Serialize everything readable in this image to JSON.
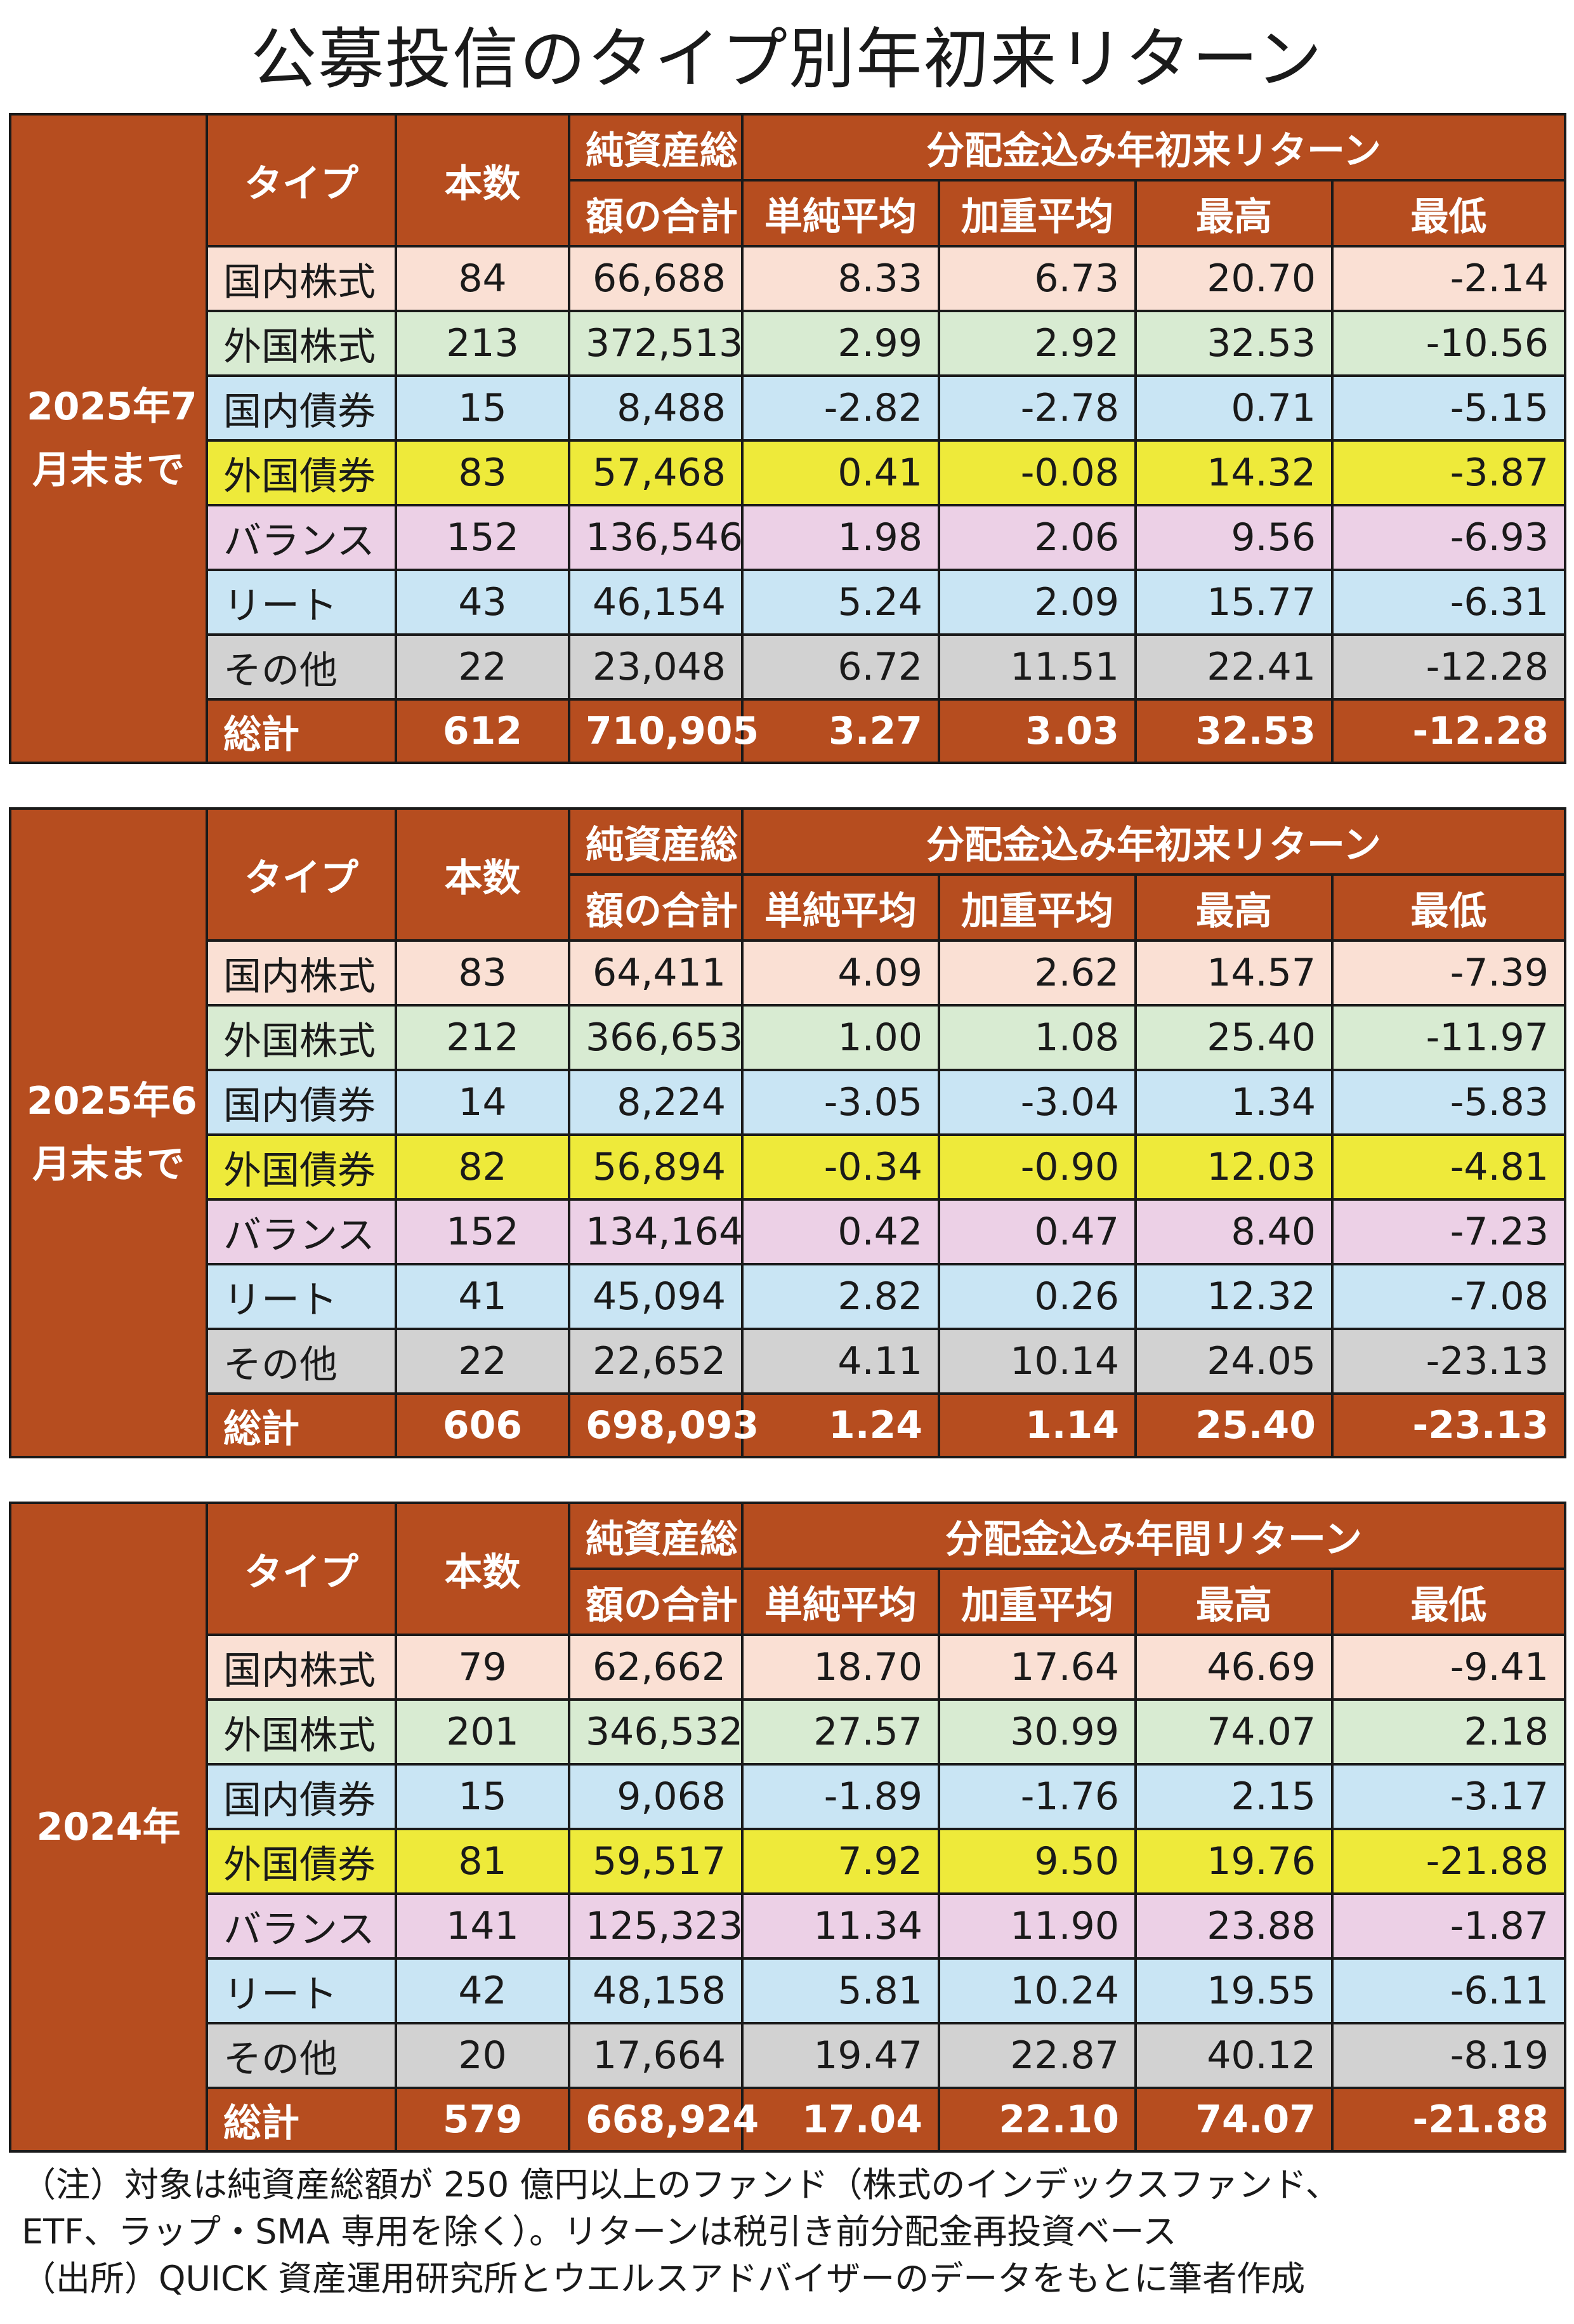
{
  "title": "公募投信のタイプ別年初来リターン",
  "colors": {
    "header_bg": "#b64d1f",
    "row_bg": [
      "#fae0d4",
      "#d8ebd2",
      "#c9e5f4",
      "#eeea3a",
      "#ecd0e6",
      "#c9e5f4",
      "#d2d2d2"
    ]
  },
  "headers": {
    "type": "タイプ",
    "count": "本数",
    "assets_line1": "純資産総",
    "assets_line2": "額の合計",
    "simple_avg": "単純平均",
    "weighted_avg": "加重平均",
    "max": "最高",
    "min": "最低"
  },
  "sections": [
    {
      "period": "2025年7月末まで",
      "return_header": "分配金込み年初来リターン",
      "rows": [
        {
          "type": "国内株式",
          "count": "84",
          "assets": "66,688",
          "simple": "8.33",
          "weighted": "6.73",
          "max": "20.70",
          "min": "-2.14"
        },
        {
          "type": "外国株式",
          "count": "213",
          "assets": "372,513",
          "simple": "2.99",
          "weighted": "2.92",
          "max": "32.53",
          "min": "-10.56"
        },
        {
          "type": "国内債券",
          "count": "15",
          "assets": "8,488",
          "simple": "-2.82",
          "weighted": "-2.78",
          "max": "0.71",
          "min": "-5.15"
        },
        {
          "type": "外国債券",
          "count": "83",
          "assets": "57,468",
          "simple": "0.41",
          "weighted": "-0.08",
          "max": "14.32",
          "min": "-3.87"
        },
        {
          "type": "バランス",
          "count": "152",
          "assets": "136,546",
          "simple": "1.98",
          "weighted": "2.06",
          "max": "9.56",
          "min": "-6.93"
        },
        {
          "type": "リート",
          "count": "43",
          "assets": "46,154",
          "simple": "5.24",
          "weighted": "2.09",
          "max": "15.77",
          "min": "-6.31"
        },
        {
          "type": "その他",
          "count": "22",
          "assets": "23,048",
          "simple": "6.72",
          "weighted": "11.51",
          "max": "22.41",
          "min": "-12.28"
        }
      ],
      "total": {
        "type": "総計",
        "count": "612",
        "assets": "710,905",
        "simple": "3.27",
        "weighted": "3.03",
        "max": "32.53",
        "min": "-12.28"
      }
    },
    {
      "period": "2025年6月末まで",
      "return_header": "分配金込み年初来リターン",
      "rows": [
        {
          "type": "国内株式",
          "count": "83",
          "assets": "64,411",
          "simple": "4.09",
          "weighted": "2.62",
          "max": "14.57",
          "min": "-7.39"
        },
        {
          "type": "外国株式",
          "count": "212",
          "assets": "366,653",
          "simple": "1.00",
          "weighted": "1.08",
          "max": "25.40",
          "min": "-11.97"
        },
        {
          "type": "国内債券",
          "count": "14",
          "assets": "8,224",
          "simple": "-3.05",
          "weighted": "-3.04",
          "max": "1.34",
          "min": "-5.83"
        },
        {
          "type": "外国債券",
          "count": "82",
          "assets": "56,894",
          "simple": "-0.34",
          "weighted": "-0.90",
          "max": "12.03",
          "min": "-4.81"
        },
        {
          "type": "バランス",
          "count": "152",
          "assets": "134,164",
          "simple": "0.42",
          "weighted": "0.47",
          "max": "8.40",
          "min": "-7.23"
        },
        {
          "type": "リート",
          "count": "41",
          "assets": "45,094",
          "simple": "2.82",
          "weighted": "0.26",
          "max": "12.32",
          "min": "-7.08"
        },
        {
          "type": "その他",
          "count": "22",
          "assets": "22,652",
          "simple": "4.11",
          "weighted": "10.14",
          "max": "24.05",
          "min": "-23.13"
        }
      ],
      "total": {
        "type": "総計",
        "count": "606",
        "assets": "698,093",
        "simple": "1.24",
        "weighted": "1.14",
        "max": "25.40",
        "min": "-23.13"
      }
    },
    {
      "period": "2024年",
      "return_header": "分配金込み年間リターン",
      "rows": [
        {
          "type": "国内株式",
          "count": "79",
          "assets": "62,662",
          "simple": "18.70",
          "weighted": "17.64",
          "max": "46.69",
          "min": "-9.41"
        },
        {
          "type": "外国株式",
          "count": "201",
          "assets": "346,532",
          "simple": "27.57",
          "weighted": "30.99",
          "max": "74.07",
          "min": "2.18"
        },
        {
          "type": "国内債券",
          "count": "15",
          "assets": "9,068",
          "simple": "-1.89",
          "weighted": "-1.76",
          "max": "2.15",
          "min": "-3.17"
        },
        {
          "type": "外国債券",
          "count": "81",
          "assets": "59,517",
          "simple": "7.92",
          "weighted": "9.50",
          "max": "19.76",
          "min": "-21.88"
        },
        {
          "type": "バランス",
          "count": "141",
          "assets": "125,323",
          "simple": "11.34",
          "weighted": "11.90",
          "max": "23.88",
          "min": "-1.87"
        },
        {
          "type": "リート",
          "count": "42",
          "assets": "48,158",
          "simple": "5.81",
          "weighted": "10.24",
          "max": "19.55",
          "min": "-6.11"
        },
        {
          "type": "その他",
          "count": "20",
          "assets": "17,664",
          "simple": "19.47",
          "weighted": "22.87",
          "max": "40.12",
          "min": "-8.19"
        }
      ],
      "total": {
        "type": "総計",
        "count": "579",
        "assets": "668,924",
        "simple": "17.04",
        "weighted": "22.10",
        "max": "74.07",
        "min": "-21.88"
      }
    }
  ],
  "notes": [
    "（注）対象は純資産総額が 250 億円以上のファンド（株式のインデックスファンド、",
    "ETF、ラップ・SMA 専用を除く）。リターンは税引き前分配金再投資ベース",
    "（出所）QUICK 資産運用研究所とウエルスアドバイザーのデータをもとに筆者作成"
  ]
}
